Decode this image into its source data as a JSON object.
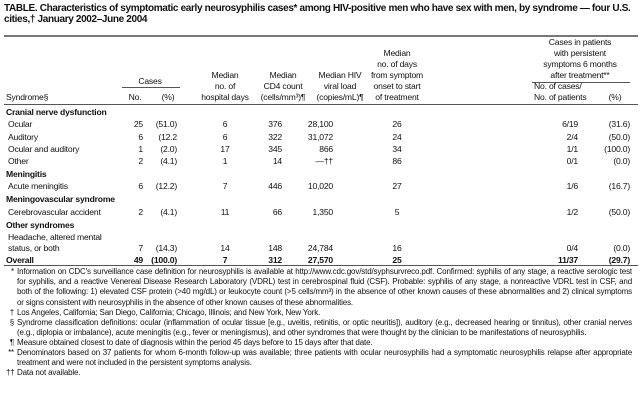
{
  "title": "TABLE. Characteristics of symptomatic early neurosyphilis cases* among HIV-positive men who have sex with men, by syndrome — four U.S. cities,† January 2002–June 2004",
  "headers": {
    "syndrome": "Syndrome§",
    "cases": "Cases",
    "no": "No.",
    "pct": "(%)",
    "hospital": [
      "Median",
      "no. of",
      "hospital days"
    ],
    "cd4": [
      "Median",
      "CD4 count",
      "(cells/mm³)¶"
    ],
    "viral": [
      "Median HIV",
      "viral load",
      "(copies/mL)¶"
    ],
    "days": [
      "Median",
      "no. of days",
      "from symptom",
      "onset to start",
      "of treatment"
    ],
    "persistent": [
      "Cases in patients",
      "with persistent",
      "symptoms 6 months",
      "after treatment**"
    ],
    "ratio": [
      "No. of cases/",
      "No. of patients"
    ],
    "ratio_pct": "(%)"
  },
  "rows": [
    {
      "type": "group",
      "label": "Cranial nerve dysfunction"
    },
    {
      "type": "data",
      "label": "Ocular",
      "no": "25",
      "pct": "(51.0)",
      "hosp": "6",
      "cd4": "376",
      "viral": "28,100",
      "days": "26",
      "ratio": "6/19",
      "rpct": "(31.6)"
    },
    {
      "type": "data",
      "label": "Auditory",
      "no": "6",
      "pct": "(12.2",
      "hosp": "6",
      "cd4": "322",
      "viral": "31,072",
      "days": "24",
      "ratio": "2/4",
      "rpct": "(50.0)"
    },
    {
      "type": "data",
      "label": "Ocular and auditory",
      "no": "1",
      "pct": "(2.0)",
      "hosp": "17",
      "cd4": "345",
      "viral": "866",
      "days": "34",
      "ratio": "1/1",
      "rpct": "(100.0)"
    },
    {
      "type": "data",
      "label": "Other",
      "no": "2",
      "pct": "(4.1)",
      "hosp": "1",
      "cd4": "14",
      "viral": "—††",
      "days": "86",
      "ratio": "0/1",
      "rpct": "(0.0)"
    },
    {
      "type": "group",
      "label": "Meningitis"
    },
    {
      "type": "data",
      "label": "Acute meningitis",
      "no": "6",
      "pct": "(12.2)",
      "hosp": "7",
      "cd4": "446",
      "viral": "10,020",
      "days": "27",
      "ratio": "1/6",
      "rpct": "(16.7)"
    },
    {
      "type": "group",
      "label": "Meningovascular syndrome"
    },
    {
      "type": "data",
      "label": "Cerebrovascular accident",
      "no": "2",
      "pct": "(4.1)",
      "hosp": "11",
      "cd4": "66",
      "viral": "1,350",
      "days": "5",
      "ratio": "1/2",
      "rpct": "(50.0)"
    },
    {
      "type": "group",
      "label": "Other syndromes"
    },
    {
      "type": "sub",
      "label": "Headache, altered mental"
    },
    {
      "type": "data",
      "label": " status, or both",
      "no": "7",
      "pct": "(14.3)",
      "hosp": "14",
      "cd4": "148",
      "viral": "24,784",
      "days": "16",
      "ratio": "0/4",
      "rpct": "(0.0)"
    },
    {
      "type": "total",
      "label": "Overall",
      "no": "49",
      "pct": "(100.0)",
      "hosp": "7",
      "cd4": "312",
      "viral": "27,570",
      "days": "25",
      "ratio": "11/37",
      "rpct": "(29.7)"
    }
  ],
  "footnotes": [
    {
      "mark": "*",
      "text": "Information on CDC's surveillance case definition for neurosyphilis is available at http://www.cdc.gov/std/syphsurvreco.pdf. Confirmed: syphilis of any stage, a reactive serologic test for syphilis, and a reactive Venereal Disease Research Laboratory (VDRL) test in cerebrospinal fluid (CSF). Probable: syphilis of any stage, a nonreactive VDRL test in CSF, and both of the following: 1) elevated CSF protein (>40 mg/dL) or leukocyte count (>5 cells/mm³) in the absence of other known causes of these abnormalities and 2) clinical symptoms or signs consistent with neurosyphilis in the absence of other known causes of these abnormalities."
    },
    {
      "mark": "†",
      "text": "Los Angeles, California; San Diego, California; Chicago, Illinois; and New York, New York."
    },
    {
      "mark": "§",
      "text": "Syndrome classification definitions: ocular (inflammation of ocular tissue [e.g., uveitis, retinitis, or optic neuritis]), auditory (e.g., decreased hearing or tinnitus), other cranial nerves (e.g., diplopia or imbalance), acute meningitis (e.g., fever or meningismus), and other syndromes that were thought by the clinician to be manifestations of neurosyphilis."
    },
    {
      "mark": "¶",
      "text": "Measure obtained closest to date of diagnosis within the period 45 days before to 15 days after that date."
    },
    {
      "mark": "**",
      "text": "Denominators based on 37 patients for whom 6-month follow-up was available; three patients with ocular neurosyphilis had a symptomatic neurosyphilis relapse after appropriate treatment and were not included in the persistent symptoms analysis."
    },
    {
      "mark": "††",
      "text": "Data not available."
    }
  ]
}
